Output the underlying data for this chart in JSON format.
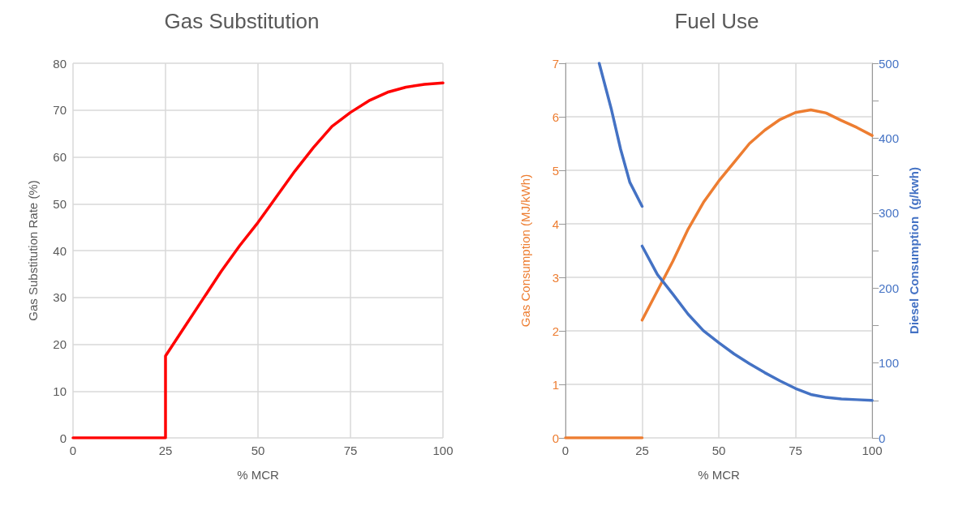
{
  "chart_data": [
    {
      "type": "line",
      "title": "Gas Substitution",
      "xlabel": "% MCR",
      "ylabel": "Gas Substitution Rate (%)",
      "xlim": [
        0,
        100
      ],
      "xticks": [
        0,
        25,
        50,
        75,
        100
      ],
      "ylim": [
        0,
        80
      ],
      "yticks": [
        0,
        10,
        20,
        30,
        40,
        50,
        60,
        70,
        80
      ],
      "grid": true,
      "marker": "none",
      "line_style": "solid",
      "series": [
        {
          "color": "#ff0000",
          "x": [
            0,
            25,
            25,
            30,
            35,
            40,
            45,
            50,
            55,
            60,
            65,
            70,
            75,
            80,
            85,
            90,
            95,
            100
          ],
          "values": [
            0,
            0,
            17.5,
            23.5,
            29.5,
            35.5,
            41,
            46,
            51.5,
            57,
            62,
            66.5,
            69.5,
            72,
            73.8,
            74.9,
            75.5,
            75.8
          ]
        }
      ]
    },
    {
      "type": "line",
      "title": "Fuel Use",
      "xlabel": "% MCR",
      "ylabel": "Gas Consumption (MJ/kWh)",
      "y2label": "Diesel Consumption  (g/kwh)",
      "xlim": [
        0,
        100
      ],
      "xticks": [
        0,
        25,
        50,
        75,
        100
      ],
      "ylim": [
        0,
        7
      ],
      "yticks": [
        0,
        1,
        2,
        3,
        4,
        5,
        6,
        7
      ],
      "y2lim": [
        0,
        500
      ],
      "y2ticks": [
        0,
        {
          "value": 50,
          "label": null
        },
        100,
        {
          "value": 150,
          "label": null
        },
        200,
        {
          "value": 250,
          "label": null
        },
        300,
        {
          "value": 350,
          "label": null
        },
        400,
        {
          "value": 450,
          "label": null
        },
        500
      ],
      "grid": true,
      "marker": "none",
      "line_style": "solid",
      "series": [
        {
          "color": "#ed7d31",
          "x": [
            0,
            25
          ],
          "values": [
            0,
            0
          ]
        },
        {
          "color": "#ed7d31",
          "x": [
            25,
            30,
            35,
            40,
            45,
            50,
            55,
            60,
            65,
            70,
            75,
            80,
            85,
            90,
            95,
            100
          ],
          "values": [
            2.2,
            2.75,
            3.3,
            3.9,
            4.4,
            4.8,
            5.15,
            5.5,
            5.75,
            5.95,
            6.08,
            6.13,
            6.07,
            5.93,
            5.8,
            5.65
          ]
        },
        {
          "color": "#4472c4",
          "axis": "y2",
          "x": [
            11,
            15,
            18,
            21,
            25
          ],
          "values": [
            500,
            438,
            385,
            341,
            309
          ]
        },
        {
          "color": "#4472c4",
          "axis": "y2",
          "x": [
            25,
            30,
            35,
            40,
            45,
            50,
            55,
            60,
            65,
            70,
            75,
            80,
            85,
            90,
            95,
            100
          ],
          "values": [
            256,
            218,
            192,
            165,
            143,
            127,
            112,
            99,
            87,
            76,
            66,
            58,
            54,
            52,
            51,
            50
          ]
        }
      ]
    }
  ]
}
